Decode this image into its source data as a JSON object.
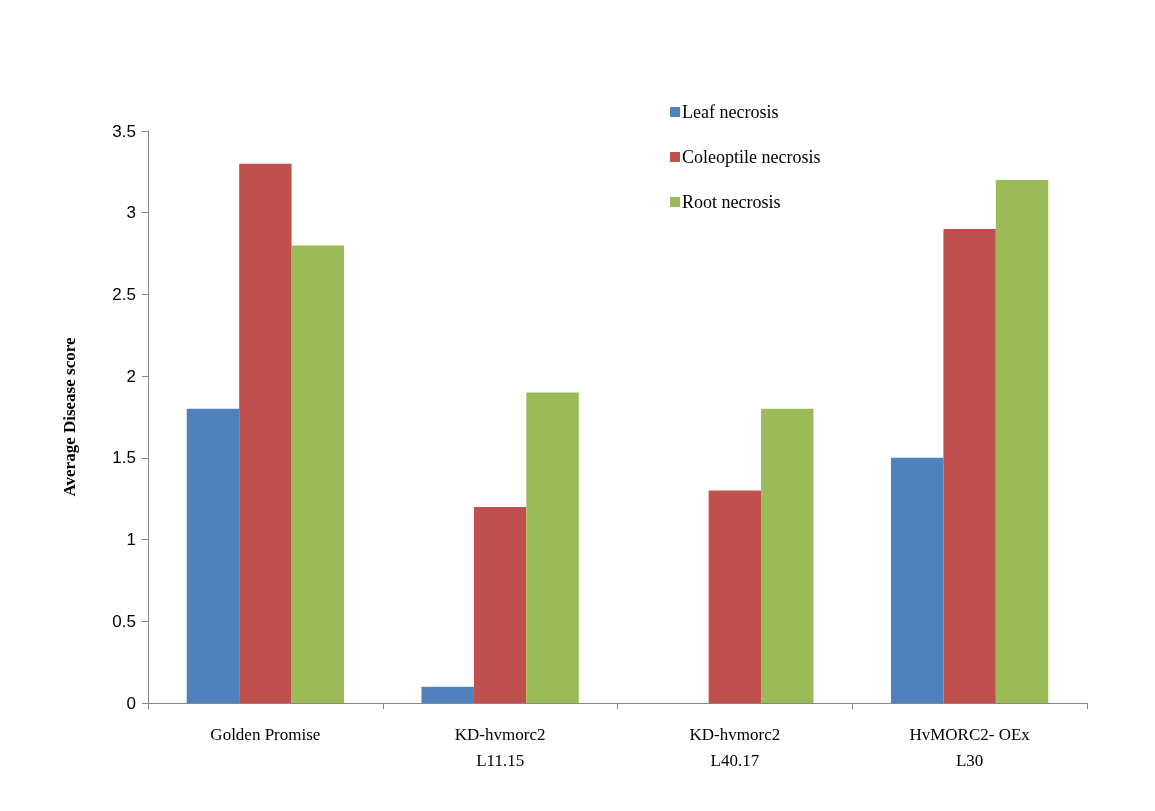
{
  "chart_data": {
    "type": "bar",
    "ylabel": "Average Disease score",
    "categories": [
      "Golden Promise",
      "KD-hvmorc2\nL11.15",
      "KD-hvmorc2\nL40.17",
      "HvMORC2- OEx\nL30"
    ],
    "series": [
      {
        "name": "Leaf necrosis",
        "color": "#4f81bd",
        "values": [
          1.8,
          0.1,
          0,
          1.5
        ]
      },
      {
        "name": "Coleoptile necrosis",
        "color": "#c0504d",
        "values": [
          3.3,
          1.2,
          1.3,
          2.9
        ]
      },
      {
        "name": "Root necrosis",
        "color": "#9bbb59",
        "values": [
          2.8,
          1.9,
          1.8,
          3.2
        ]
      }
    ],
    "ylim": [
      0,
      3.5
    ],
    "yticks": [
      0,
      0.5,
      1,
      1.5,
      2,
      2.5,
      3,
      3.5
    ],
    "grid": false,
    "legend": "top right"
  }
}
